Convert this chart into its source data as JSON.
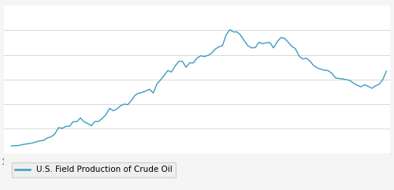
{
  "title": "",
  "legend_label": "U.S. Field Production of Crude Oil",
  "line_color": "#3a9dbf",
  "background_color": "#f5f5f5",
  "plot_bg_color": "#ffffff",
  "grid_color": "#d8d8d8",
  "xlabel": "",
  "ylabel": "",
  "xlim": [
    1908,
    2014
  ],
  "ylim": [
    0,
    4200
  ],
  "xticks": [
    1910,
    1920,
    1930,
    1940,
    1950,
    1960,
    1970,
    1980,
    1990,
    2000,
    2010
  ],
  "yticks": [
    700,
    1400,
    2100,
    2800,
    3500
  ],
  "years": [
    1910,
    1911,
    1912,
    1913,
    1914,
    1915,
    1916,
    1917,
    1918,
    1919,
    1920,
    1921,
    1922,
    1923,
    1924,
    1925,
    1926,
    1927,
    1928,
    1929,
    1930,
    1931,
    1932,
    1933,
    1934,
    1935,
    1936,
    1937,
    1938,
    1939,
    1940,
    1941,
    1942,
    1943,
    1944,
    1945,
    1946,
    1947,
    1948,
    1949,
    1950,
    1951,
    1952,
    1953,
    1954,
    1955,
    1956,
    1957,
    1958,
    1959,
    1960,
    1961,
    1962,
    1963,
    1964,
    1965,
    1966,
    1967,
    1968,
    1969,
    1970,
    1971,
    1972,
    1973,
    1974,
    1975,
    1976,
    1977,
    1978,
    1979,
    1980,
    1981,
    1982,
    1983,
    1984,
    1985,
    1986,
    1987,
    1988,
    1989,
    1990,
    1991,
    1992,
    1993,
    1994,
    1995,
    1996,
    1997,
    1998,
    1999,
    2000,
    2001,
    2002,
    2003,
    2004,
    2005,
    2006,
    2007,
    2008,
    2009,
    2010,
    2011,
    2012,
    2013
  ],
  "production": [
    210,
    220,
    222,
    248,
    266,
    281,
    300,
    335,
    356,
    378,
    443,
    472,
    558,
    732,
    714,
    764,
    771,
    901,
    901,
    1007,
    898,
    851,
    785,
    909,
    908,
    997,
    1099,
    1280,
    1213,
    1264,
    1353,
    1402,
    1386,
    1506,
    1655,
    1714,
    1734,
    1779,
    1822,
    1717,
    1974,
    2091,
    2220,
    2358,
    2315,
    2484,
    2617,
    2617,
    2449,
    2575,
    2574,
    2707,
    2777,
    2753,
    2787,
    2849,
    2967,
    3028,
    3068,
    3371,
    3517,
    3454,
    3455,
    3360,
    3203,
    3057,
    3000,
    3009,
    3157,
    3121,
    3146,
    3154,
    2999,
    3171,
    3293,
    3274,
    3168,
    3047,
    2979,
    2774,
    2685,
    2707,
    2624,
    2499,
    2431,
    2394,
    2366,
    2355,
    2281,
    2146,
    2130,
    2117,
    2097,
    2073,
    1994,
    1938,
    1893,
    1953,
    1908,
    1851,
    1921,
    1966,
    2097,
    2344
  ]
}
